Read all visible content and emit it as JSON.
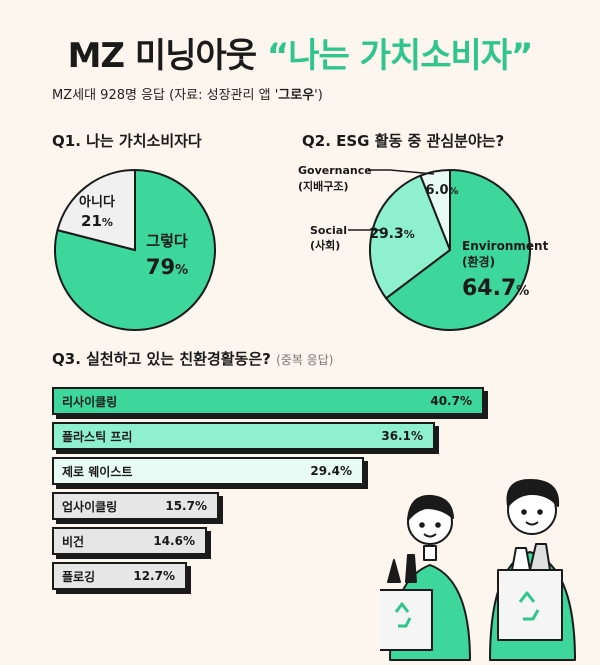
{
  "header": {
    "title_main": "MZ 미닝아웃",
    "title_accent": "“나는 가치소비자”",
    "subtitle_pre": "MZ세대 928명 응답 (자료: 성장관리 앱 '",
    "subtitle_app": "그로우",
    "subtitle_post": "')"
  },
  "colors": {
    "green": "#3dd69b",
    "mint": "#8ff0cf",
    "pale": "#e9fbf5",
    "gray": "#e6e6e6",
    "light_gray": "#f0f0f0"
  },
  "chart_data": [
    {
      "type": "pie",
      "title": "Q1. 나는 가치소비자다",
      "slices": [
        {
          "label": "그렇다",
          "value": 79,
          "display": "79"
        },
        {
          "label": "아니다",
          "value": 21,
          "display": "21"
        }
      ]
    },
    {
      "type": "pie",
      "title": "Q2. ESG 활동 중 관심분야는?",
      "slices": [
        {
          "label": "Environment",
          "sublabel": "(환경)",
          "value": 64.7,
          "display": "64.7"
        },
        {
          "label": "Social",
          "sublabel": "(사회)",
          "value": 29.3,
          "display": "29.3"
        },
        {
          "label": "Governance",
          "sublabel": "(지배구조)",
          "value": 6.0,
          "display": "6.0"
        }
      ]
    },
    {
      "type": "bar",
      "title": "Q3. 실천하고 있는 친환경활동은?",
      "note": "(중복 응답)",
      "categories": [
        "리사이클링",
        "플라스틱 프리",
        "제로 웨이스트",
        "업사이클링",
        "비건",
        "플로깅"
      ],
      "values": [
        40.7,
        36.1,
        29.4,
        15.7,
        14.6,
        12.7
      ],
      "value_labels": [
        "40.7%",
        "36.1%",
        "29.4%",
        "15.7%",
        "14.6%",
        "12.7%"
      ]
    }
  ]
}
